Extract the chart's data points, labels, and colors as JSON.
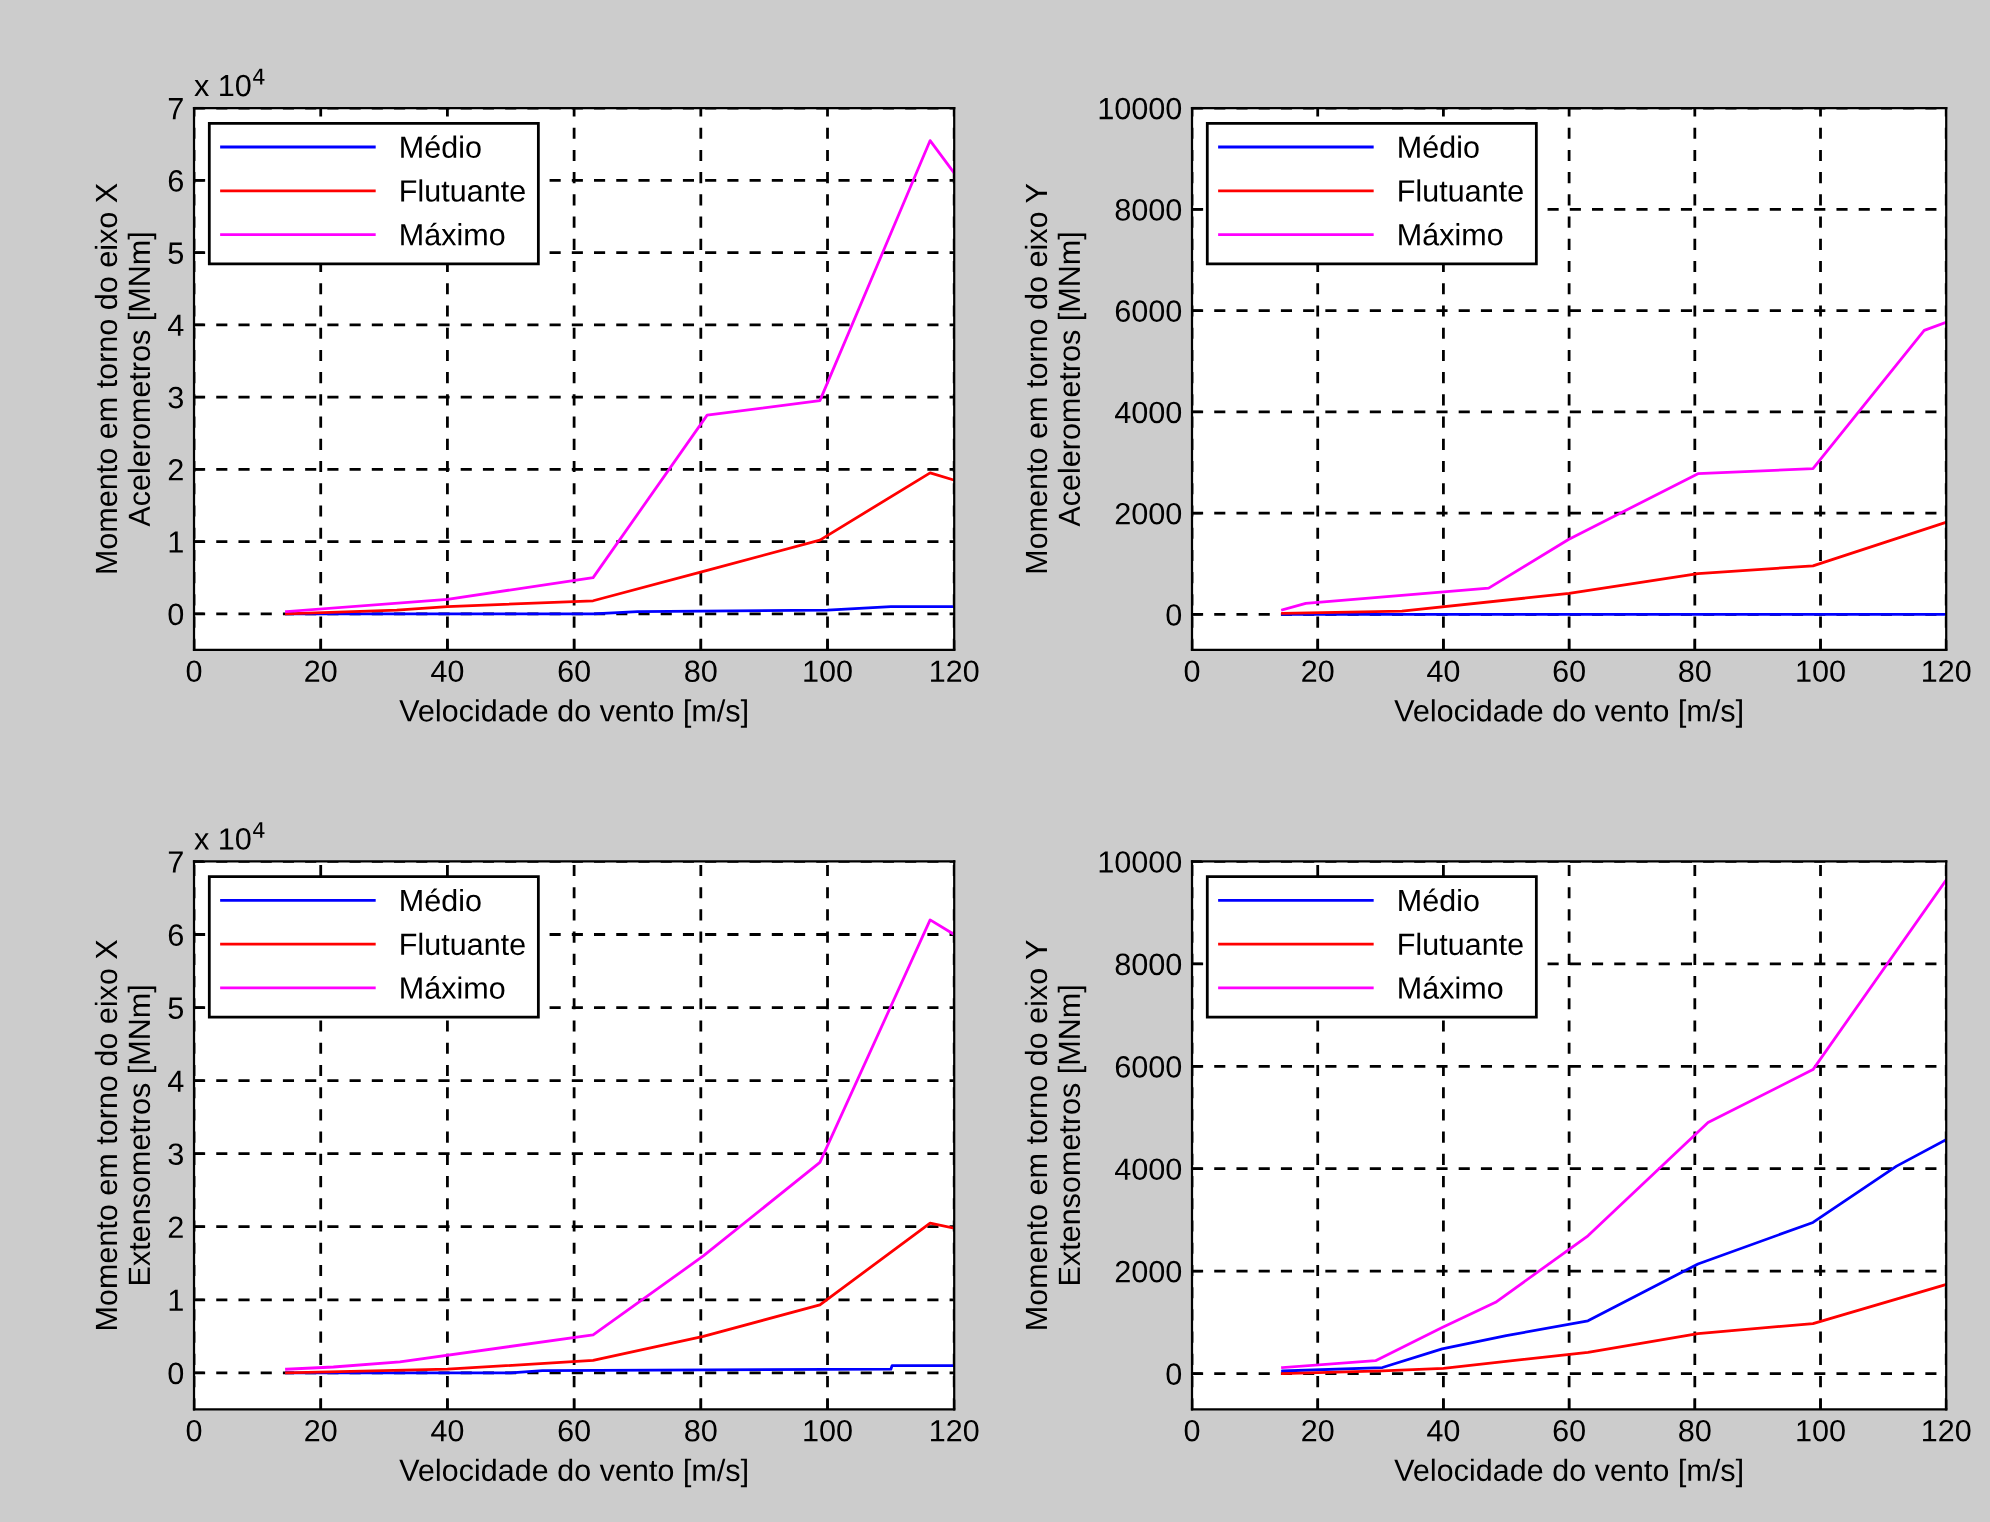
{
  "chart_data": [
    {
      "type": "line",
      "xlabel": "Velocidade do vento [m/s]",
      "ylabel": "Momento em torno do eixo X\nAcelerometros [MNm]",
      "annotations": [
        "x 10$^{4}$"
      ],
      "xlim": [
        0,
        120
      ],
      "xticks": [
        0,
        20,
        40,
        60,
        80,
        100,
        120
      ],
      "ylim": [
        -0.5,
        7
      ],
      "yticks": [
        0,
        1,
        2,
        3,
        4,
        5,
        6,
        7
      ],
      "grid": true,
      "legend": "top left",
      "line_style": "solid",
      "series": [
        {
          "name": "Médio",
          "color": "#0000ff",
          "x": [
            14.6,
            63,
            70,
            100,
            110,
            120
          ],
          "values": [
            0,
            0,
            0.03,
            0.05,
            0.1,
            0.1
          ]
        },
        {
          "name": "Flutuante",
          "color": "#ff0000",
          "x": [
            14.6,
            32,
            40,
            63,
            81,
            98.8,
            116.2,
            120
          ],
          "values": [
            0,
            0.05,
            0.1,
            0.18,
            0.6,
            1.02,
            1.95,
            1.85
          ]
        },
        {
          "name": "Máximo",
          "color": "#ff00ff",
          "x": [
            14.6,
            40,
            63,
            81,
            98.8,
            116.2,
            120
          ],
          "values": [
            0.03,
            0.2,
            0.5,
            2.75,
            2.95,
            6.55,
            6.1
          ]
        }
      ]
    },
    {
      "type": "line",
      "xlabel": "Velocidade do vento [m/s]",
      "ylabel": "Momento em torno do eixo Y\nAcelerometros [MNm]",
      "xlim": [
        0,
        120
      ],
      "xticks": [
        0,
        20,
        40,
        60,
        80,
        100,
        120
      ],
      "ylim": [
        -700,
        10000
      ],
      "yticks": [
        0,
        2000,
        4000,
        6000,
        8000,
        10000
      ],
      "grid": true,
      "legend": "top left",
      "line_style": "solid",
      "series": [
        {
          "name": "Médio",
          "color": "#0000ff",
          "x": [
            14.4,
            120
          ],
          "values": [
            0,
            0
          ]
        },
        {
          "name": "Flutuante",
          "color": "#ff0000",
          "x": [
            14.4,
            33.4,
            60,
            80.5,
            98.8,
            120
          ],
          "values": [
            20,
            65,
            415,
            805,
            960,
            1820
          ]
        },
        {
          "name": "Máximo",
          "color": "#ff00ff",
          "x": [
            14.4,
            18.1,
            47.2,
            59.9,
            80.5,
            98.8,
            116.5,
            120
          ],
          "values": [
            90,
            220,
            520,
            1480,
            2780,
            2880,
            5610,
            5770
          ]
        }
      ]
    },
    {
      "type": "line",
      "xlabel": "Velocidade do vento [m/s]",
      "ylabel": "Momento em torno do eixo X\nExtensometros [MNm]",
      "annotations": [
        "x 10$^{4}$"
      ],
      "xlim": [
        0,
        120
      ],
      "xticks": [
        0,
        20,
        40,
        60,
        80,
        100,
        120
      ],
      "ylim": [
        -0.5,
        7
      ],
      "yticks": [
        0,
        1,
        2,
        3,
        4,
        5,
        6,
        7
      ],
      "grid": true,
      "legend": "top left",
      "line_style": "solid",
      "series": [
        {
          "name": "Médio",
          "color": "#0000ff",
          "x": [
            14.6,
            50,
            55,
            110,
            110.2,
            120
          ],
          "values": [
            0,
            0,
            0.03,
            0.05,
            0.1,
            0.1
          ]
        },
        {
          "name": "Flutuante",
          "color": "#ff0000",
          "x": [
            14.6,
            40,
            63,
            80.4,
            98.8,
            116.2,
            120
          ],
          "values": [
            0,
            0.05,
            0.17,
            0.5,
            0.93,
            2.05,
            1.98
          ]
        },
        {
          "name": "Máximo",
          "color": "#ff00ff",
          "x": [
            14.6,
            22,
            32.5,
            63,
            80.4,
            98.8,
            116.2,
            120
          ],
          "values": [
            0.05,
            0.08,
            0.15,
            0.52,
            1.6,
            2.88,
            6.2,
            6.0
          ]
        }
      ]
    },
    {
      "type": "line",
      "xlabel": "Velocidade do vento [m/s]",
      "ylabel": "Momento em torno do eixo Y\nExtensometros [MNm]",
      "xlim": [
        0,
        120
      ],
      "xticks": [
        0,
        20,
        40,
        60,
        80,
        100,
        120
      ],
      "ylim": [
        -700,
        10000
      ],
      "yticks": [
        0,
        2000,
        4000,
        6000,
        8000,
        10000
      ],
      "grid": true,
      "legend": "top left",
      "line_style": "solid",
      "series": [
        {
          "name": "Médio",
          "color": "#0000ff",
          "x": [
            14.4,
            30.3,
            39.8,
            50,
            63,
            80.5,
            98.8,
            112.1,
            120
          ],
          "values": [
            50,
            117,
            480,
            740,
            1030,
            2140,
            2950,
            4050,
            4570
          ]
        },
        {
          "name": "Flutuante",
          "color": "#ff0000",
          "x": [
            14.4,
            30.3,
            40,
            63,
            80.5,
            98.8,
            120
          ],
          "values": [
            0,
            50,
            100,
            415,
            780,
            975,
            1740
          ]
        },
        {
          "name": "Máximo",
          "color": "#ff00ff",
          "x": [
            14.4,
            29.2,
            39.8,
            48.3,
            63,
            82.1,
            98.8,
            120
          ],
          "values": [
            117,
            250,
            900,
            1390,
            2690,
            4900,
            5935,
            9640
          ]
        }
      ]
    }
  ]
}
